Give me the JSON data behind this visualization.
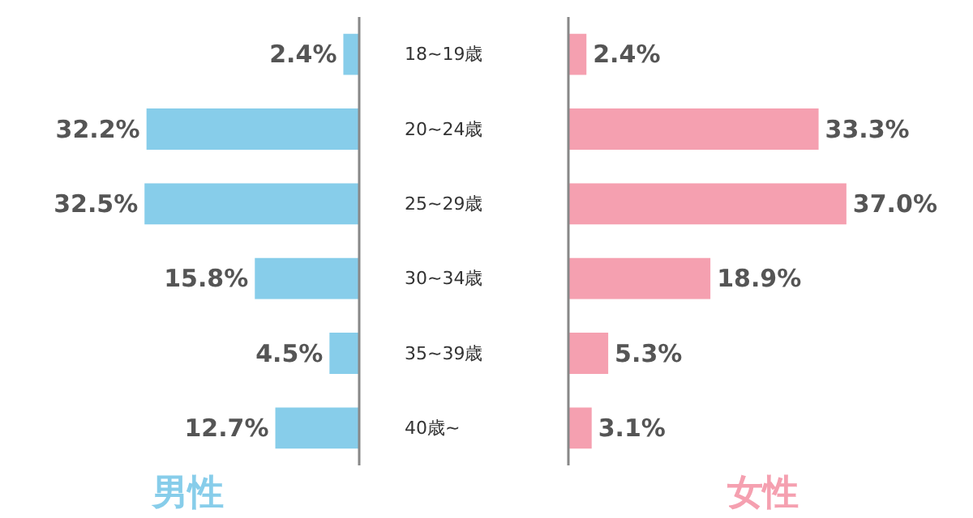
{
  "chart_data": [
    {
      "type": "bar",
      "orientation": "horizontal",
      "xlabel": "男性",
      "categories": [
        "18~19歳",
        "20~24歳",
        "25~29歳",
        "30~34歳",
        "35~39歳",
        "40歳~"
      ],
      "values": [
        2.4,
        32.2,
        32.5,
        15.8,
        4.5,
        12.7
      ],
      "value_labels": [
        "2.4%",
        "32.2%",
        "32.5%",
        "15.8%",
        "4.5%",
        "12.7%"
      ],
      "color": "#87cdea",
      "tick_labels": "y"
    },
    {
      "type": "bar",
      "orientation": "horizontal",
      "xlabel": "女性",
      "categories": [
        null,
        null,
        null,
        null,
        null,
        null
      ],
      "values": [
        2.4,
        33.3,
        37.0,
        18.9,
        5.3,
        3.1
      ],
      "value_labels": [
        "2.4%",
        "33.3%",
        "37.0%",
        "18.9%",
        "5.3%",
        "3.1%"
      ],
      "color": "#f5a0b0",
      "tick_labels": false
    }
  ]
}
